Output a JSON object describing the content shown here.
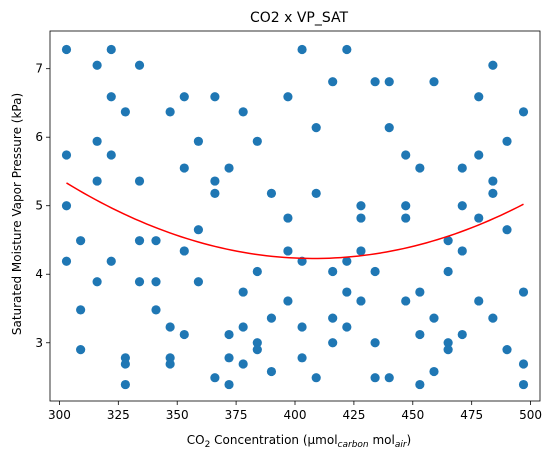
{
  "chart_data": {
    "type": "scatter",
    "title": "CO2 x VP_SAT",
    "xlabel": {
      "pre": "CO",
      "sub1": "2",
      "mid": " Concentration (µmol",
      "sub2": "carbon",
      "mid2": " mol",
      "sub3": "air",
      "post": ")"
    },
    "ylabel": "Saturated Moisture Vapor Pressure (kPa)",
    "xlim": [
      296,
      504
    ],
    "ylim": [
      2.15,
      7.55
    ],
    "xticks": [
      300,
      325,
      350,
      375,
      400,
      425,
      450,
      475,
      500
    ],
    "yticks": [
      3,
      4,
      5,
      6,
      7
    ],
    "grid": false,
    "point_color": "#1f77b4",
    "fit_color": "#ff0000",
    "points": [
      [
        303,
        7.28
      ],
      [
        303,
        5.74
      ],
      [
        303,
        5.0
      ],
      [
        303,
        4.19
      ],
      [
        309,
        4.49
      ],
      [
        309,
        3.48
      ],
      [
        309,
        2.9
      ],
      [
        316,
        7.05
      ],
      [
        316,
        5.94
      ],
      [
        316,
        5.36
      ],
      [
        316,
        3.89
      ],
      [
        322,
        7.28
      ],
      [
        322,
        6.59
      ],
      [
        322,
        5.74
      ],
      [
        322,
        4.19
      ],
      [
        328,
        6.37
      ],
      [
        328,
        2.78
      ],
      [
        328,
        2.69
      ],
      [
        328,
        2.39
      ],
      [
        334,
        7.05
      ],
      [
        334,
        5.36
      ],
      [
        334,
        4.49
      ],
      [
        334,
        3.89
      ],
      [
        341,
        4.49
      ],
      [
        341,
        3.89
      ],
      [
        341,
        3.48
      ],
      [
        347,
        6.37
      ],
      [
        347,
        3.23
      ],
      [
        347,
        2.78
      ],
      [
        347,
        2.69
      ],
      [
        353,
        6.59
      ],
      [
        353,
        5.55
      ],
      [
        353,
        4.34
      ],
      [
        353,
        3.12
      ],
      [
        359,
        5.94
      ],
      [
        359,
        4.65
      ],
      [
        359,
        3.89
      ],
      [
        366,
        6.59
      ],
      [
        366,
        5.36
      ],
      [
        366,
        5.18
      ],
      [
        366,
        2.49
      ],
      [
        372,
        5.55
      ],
      [
        372,
        3.12
      ],
      [
        372,
        2.78
      ],
      [
        372,
        2.39
      ],
      [
        378,
        6.37
      ],
      [
        378,
        3.74
      ],
      [
        378,
        3.23
      ],
      [
        378,
        2.69
      ],
      [
        384,
        5.94
      ],
      [
        384,
        4.04
      ],
      [
        384,
        3.0
      ],
      [
        384,
        2.9
      ],
      [
        390,
        5.18
      ],
      [
        390,
        3.36
      ],
      [
        390,
        2.58
      ],
      [
        397,
        6.59
      ],
      [
        397,
        4.82
      ],
      [
        397,
        4.34
      ],
      [
        397,
        3.61
      ],
      [
        403,
        7.28
      ],
      [
        403,
        4.19
      ],
      [
        403,
        3.23
      ],
      [
        403,
        2.78
      ],
      [
        409,
        6.14
      ],
      [
        409,
        5.18
      ],
      [
        409,
        2.49
      ],
      [
        416,
        6.81
      ],
      [
        416,
        4.04
      ],
      [
        416,
        3.36
      ],
      [
        416,
        3.0
      ],
      [
        422,
        7.28
      ],
      [
        422,
        4.19
      ],
      [
        422,
        3.74
      ],
      [
        422,
        3.23
      ],
      [
        428,
        5.0
      ],
      [
        428,
        4.82
      ],
      [
        428,
        4.34
      ],
      [
        428,
        3.61
      ],
      [
        434,
        6.81
      ],
      [
        434,
        4.04
      ],
      [
        434,
        3.0
      ],
      [
        434,
        2.49
      ],
      [
        440,
        6.81
      ],
      [
        440,
        6.14
      ],
      [
        440,
        2.49
      ],
      [
        447,
        5.74
      ],
      [
        447,
        5.0
      ],
      [
        447,
        4.82
      ],
      [
        447,
        3.61
      ],
      [
        453,
        5.55
      ],
      [
        453,
        3.74
      ],
      [
        453,
        3.12
      ],
      [
        453,
        2.39
      ],
      [
        459,
        6.81
      ],
      [
        459,
        3.36
      ],
      [
        459,
        2.58
      ],
      [
        465,
        4.49
      ],
      [
        465,
        4.04
      ],
      [
        465,
        3.0
      ],
      [
        465,
        2.9
      ],
      [
        471,
        5.55
      ],
      [
        471,
        5.0
      ],
      [
        471,
        4.34
      ],
      [
        471,
        3.12
      ],
      [
        478,
        6.59
      ],
      [
        478,
        5.74
      ],
      [
        478,
        4.82
      ],
      [
        478,
        3.61
      ],
      [
        484,
        7.05
      ],
      [
        484,
        5.36
      ],
      [
        484,
        5.18
      ],
      [
        484,
        3.36
      ],
      [
        490,
        5.94
      ],
      [
        490,
        4.65
      ],
      [
        490,
        2.9
      ],
      [
        497,
        6.37
      ],
      [
        497,
        3.74
      ],
      [
        497,
        2.69
      ],
      [
        497,
        2.39
      ]
    ],
    "fit": {
      "a": 0.0001,
      "vertex_x": 408,
      "vertex_y": 4.23,
      "x_from": 303,
      "x_to": 497
    }
  }
}
